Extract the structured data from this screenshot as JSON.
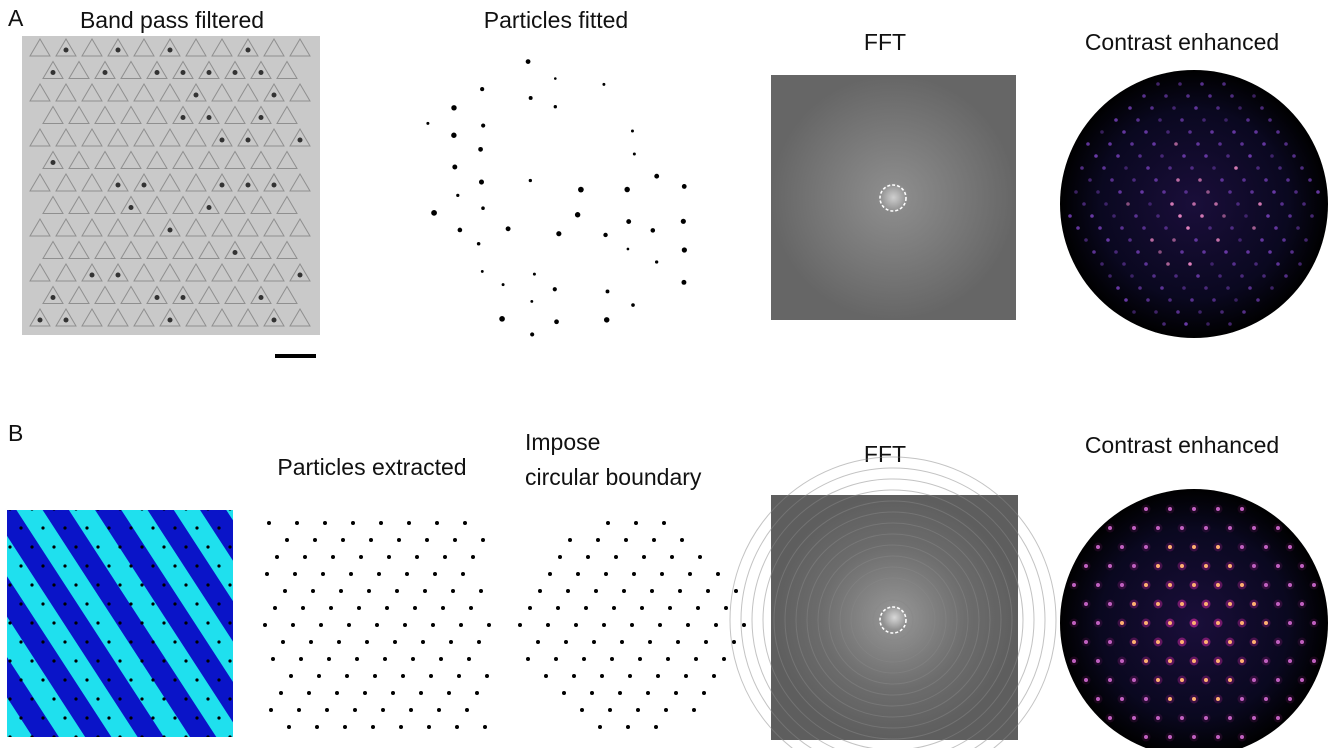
{
  "panel_a": {
    "label": "A",
    "band_pass_title": "Band pass filtered",
    "particles_title": "Particles fitted",
    "fft_title": "FFT",
    "contrast_title": "Contrast enhanced"
  },
  "panel_b": {
    "label": "B",
    "particles_title": "Particles extracted",
    "impose_title": [
      "Impose",
      "circular boundary"
    ],
    "fft_title": "FFT",
    "contrast_title": "Contrast enhanced"
  }
}
